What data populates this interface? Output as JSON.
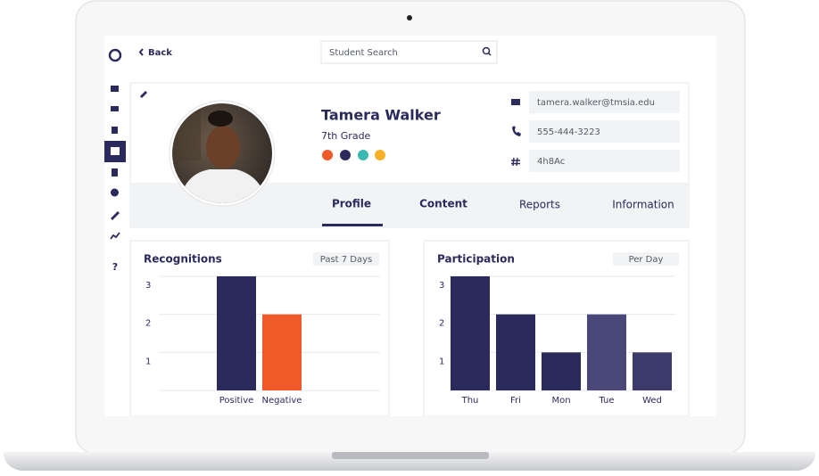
{
  "nav": {
    "back": "Back",
    "search": "Student Search",
    "help": "?"
  },
  "profile": {
    "name": "Tamera Walker",
    "grade": "7th Grade",
    "email": "tamera.walker@tmsia.edu",
    "phone": "555-444-3223",
    "id": "4h8Ac"
  },
  "tabs": [
    "Profile",
    "Content",
    "Reports",
    "Information"
  ],
  "charts": [
    {
      "type": "bar",
      "title": "Recognitions",
      "filter": "Past 7 Days",
      "categories": [
        "Positive",
        "Negative"
      ],
      "values": [
        3,
        2
      ],
      "colors": [
        "#2b2a5c",
        "#f05a28"
      ],
      "ylim": [
        0,
        3
      ],
      "yticks": [
        1,
        2,
        3
      ],
      "grid": true
    },
    {
      "type": "bar",
      "title": "Participation",
      "filter": "Per Day",
      "categories": [
        "Thu",
        "Fri",
        "Mon",
        "Tue",
        "Wed"
      ],
      "values": [
        3,
        2,
        1,
        2,
        1
      ],
      "colors": [
        "#2b2a5c",
        "#2b2a5c",
        "#2b2a5c",
        "#4a4878",
        "#3b3a6a"
      ],
      "ylim": [
        0,
        3
      ],
      "yticks": [
        1,
        2,
        3
      ],
      "grid": true
    }
  ]
}
